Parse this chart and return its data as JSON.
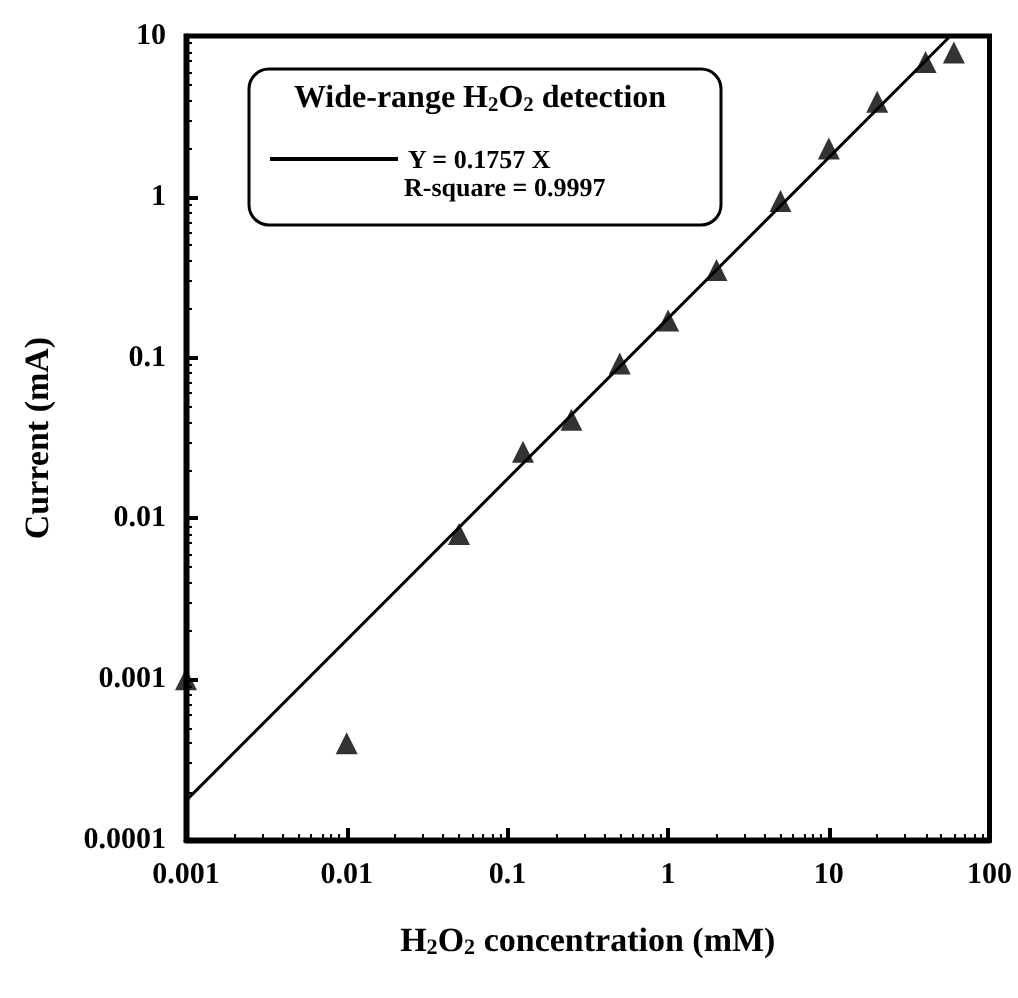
{
  "chart_data": {
    "type": "scatter",
    "xlabel": "H$_{2}$O$_{2}$ concentration (mM)",
    "ylabel": "Current (mA)",
    "legend_title": "Wide-range H$_{2}$O$_{2}$ detection",
    "annotations": [
      "R-square = 0.9997"
    ],
    "series": [
      {
        "color": "#000000",
        "marker": "triangle",
        "x": [
          0.001,
          0.01,
          0.05,
          0.125,
          0.25,
          0.5,
          1,
          2,
          5,
          10,
          20,
          40,
          60
        ],
        "values": [
          0.001,
          0.0004,
          0.008,
          0.026,
          0.041,
          0.092,
          0.17,
          0.35,
          0.94,
          2.0,
          3.9,
          6.9,
          7.9
        ]
      },
      {
        "type": "line",
        "name": "Y = 0.1757 X",
        "color": "#000000",
        "marker": "none",
        "line_style": "solid",
        "x": [
          0.001,
          57
        ],
        "values": [
          0.0001757,
          10
        ]
      }
    ],
    "log": "xy",
    "grid": false,
    "legend": "top left",
    "xlim": [
      0.001,
      100
    ],
    "xticks": [
      0.001,
      0.01,
      0.1,
      1,
      10,
      100
    ],
    "ylim": [
      0.0001,
      10
    ],
    "yticks": [
      0.0001,
      0.001,
      0.01,
      0.1,
      1,
      10
    ]
  }
}
